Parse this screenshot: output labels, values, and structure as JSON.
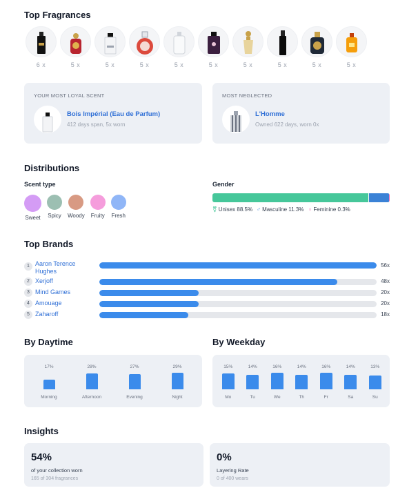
{
  "top_fragrances": {
    "title": "Top Fragrances",
    "items": [
      {
        "count": "6 x",
        "icon": "black-bottle-icon"
      },
      {
        "count": "5 x",
        "icon": "ornate-red-bottle-icon"
      },
      {
        "count": "5 x",
        "icon": "clear-bottle-icon"
      },
      {
        "count": "5 x",
        "icon": "round-red-bottle-icon"
      },
      {
        "count": "5 x",
        "icon": "white-bottle-icon"
      },
      {
        "count": "5 x",
        "icon": "purple-bottle-icon"
      },
      {
        "count": "5 x",
        "icon": "gold-bottle-icon"
      },
      {
        "count": "5 x",
        "icon": "tall-black-bottle-icon"
      },
      {
        "count": "5 x",
        "icon": "gold-black-bottle-icon"
      },
      {
        "count": "5 x",
        "icon": "orange-bottle-icon"
      }
    ]
  },
  "loyal": {
    "label": "YOUR MOST LOYAL SCENT",
    "name": "Bois Impérial (Eau de Parfum)",
    "sub": "412 days span, 5x worn"
  },
  "neglected": {
    "label": "MOST NEGLECTED",
    "name": "L'Homme",
    "sub": "Owned 622 days, worn 0x"
  },
  "distributions": {
    "title": "Distributions",
    "scent_type": {
      "title": "Scent type",
      "items": [
        {
          "label": "Sweet",
          "color": "#d49cf5"
        },
        {
          "label": "Spicy",
          "color": "#9cbfb2"
        },
        {
          "label": "Woody",
          "color": "#d89a83"
        },
        {
          "label": "Fruity",
          "color": "#f59ddc"
        },
        {
          "label": "Fresh",
          "color": "#90b6f7"
        }
      ]
    },
    "gender": {
      "title": "Gender",
      "unisex_pct": 88.5,
      "masculine_pct": 11.3,
      "feminine_pct": 0.3,
      "unisex_color": "#46c79a",
      "masculine_color": "#3b82d6",
      "feminine_color": "#f472b6",
      "unisex_label": "Unisex 88.5%",
      "masculine_label": "Masculine 11.3%",
      "feminine_label": "Feminine 0.3%"
    }
  },
  "top_brands": {
    "title": "Top Brands",
    "max": 56,
    "items": [
      {
        "rank": "1",
        "name": "Aaron Terence Hughes",
        "value": 56,
        "label": "56x"
      },
      {
        "rank": "2",
        "name": "Xerjoff",
        "value": 48,
        "label": "48x"
      },
      {
        "rank": "3",
        "name": "Mind Games",
        "value": 20,
        "label": "20x"
      },
      {
        "rank": "4",
        "name": "Amouage",
        "value": 20,
        "label": "20x"
      },
      {
        "rank": "5",
        "name": "Zaharoff",
        "value": 18,
        "label": "18x"
      }
    ]
  },
  "by_daytime": {
    "title": "By Daytime",
    "items": [
      {
        "label": "Morning",
        "value": 17,
        "pct": "17%"
      },
      {
        "label": "Afternoon",
        "value": 28,
        "pct": "28%"
      },
      {
        "label": "Evening",
        "value": 27,
        "pct": "27%"
      },
      {
        "label": "Night",
        "value": 29,
        "pct": "29%"
      }
    ]
  },
  "by_weekday": {
    "title": "By Weekday",
    "items": [
      {
        "label": "Mo",
        "value": 15,
        "pct": "15%"
      },
      {
        "label": "Tu",
        "value": 14,
        "pct": "14%"
      },
      {
        "label": "We",
        "value": 16,
        "pct": "16%"
      },
      {
        "label": "Th",
        "value": 14,
        "pct": "14%"
      },
      {
        "label": "Fr",
        "value": 16,
        "pct": "16%"
      },
      {
        "label": "Sa",
        "value": 14,
        "pct": "14%"
      },
      {
        "label": "Su",
        "value": 13,
        "pct": "13%"
      }
    ]
  },
  "insights": {
    "title": "Insights",
    "collection": {
      "big": "54%",
      "line1": "of your collection worn",
      "line2": "165 of 304 fragrances"
    },
    "layering": {
      "big": "0%",
      "line1": "Layering Rate",
      "line2": "0 of 400 wears"
    }
  }
}
